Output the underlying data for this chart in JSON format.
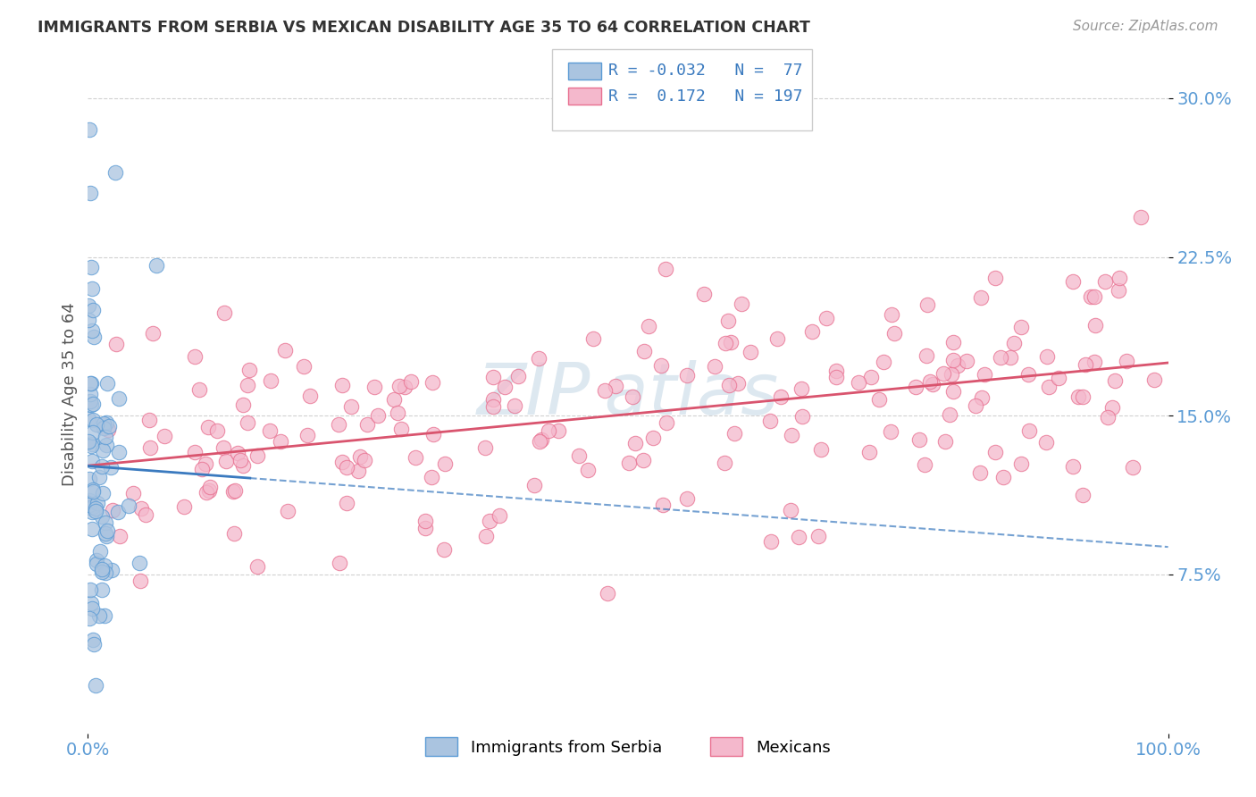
{
  "title": "IMMIGRANTS FROM SERBIA VS MEXICAN DISABILITY AGE 35 TO 64 CORRELATION CHART",
  "source": "Source: ZipAtlas.com",
  "ylabel": "Disability Age 35 to 64",
  "xlim": [
    0,
    1.0
  ],
  "ylim": [
    0,
    0.32
  ],
  "yticks": [
    0.075,
    0.15,
    0.225,
    0.3
  ],
  "ytick_labels": [
    "7.5%",
    "15.0%",
    "22.5%",
    "30.0%"
  ],
  "xtick_labels": [
    "0.0%",
    "100.0%"
  ],
  "serbia_R": -0.032,
  "serbia_N": 77,
  "mexican_R": 0.172,
  "mexican_N": 197,
  "serbia_fill_color": "#aac4e0",
  "serbia_edge_color": "#5b9bd5",
  "mexico_fill_color": "#f4b8cc",
  "mexico_edge_color": "#e87090",
  "serbia_line_color": "#3a7abf",
  "mexico_line_color": "#d9546e",
  "background_color": "#ffffff",
  "grid_color": "#cccccc",
  "tick_color": "#5b9bd5",
  "title_color": "#333333",
  "ylabel_color": "#555555",
  "source_color": "#999999",
  "watermark_color": "#dde8f0",
  "legend_serbia_label": "Immigrants from Serbia",
  "legend_mexico_label": "Mexicans",
  "legend_r_color": "#d04060",
  "legend_n_color": "#3a7abf"
}
